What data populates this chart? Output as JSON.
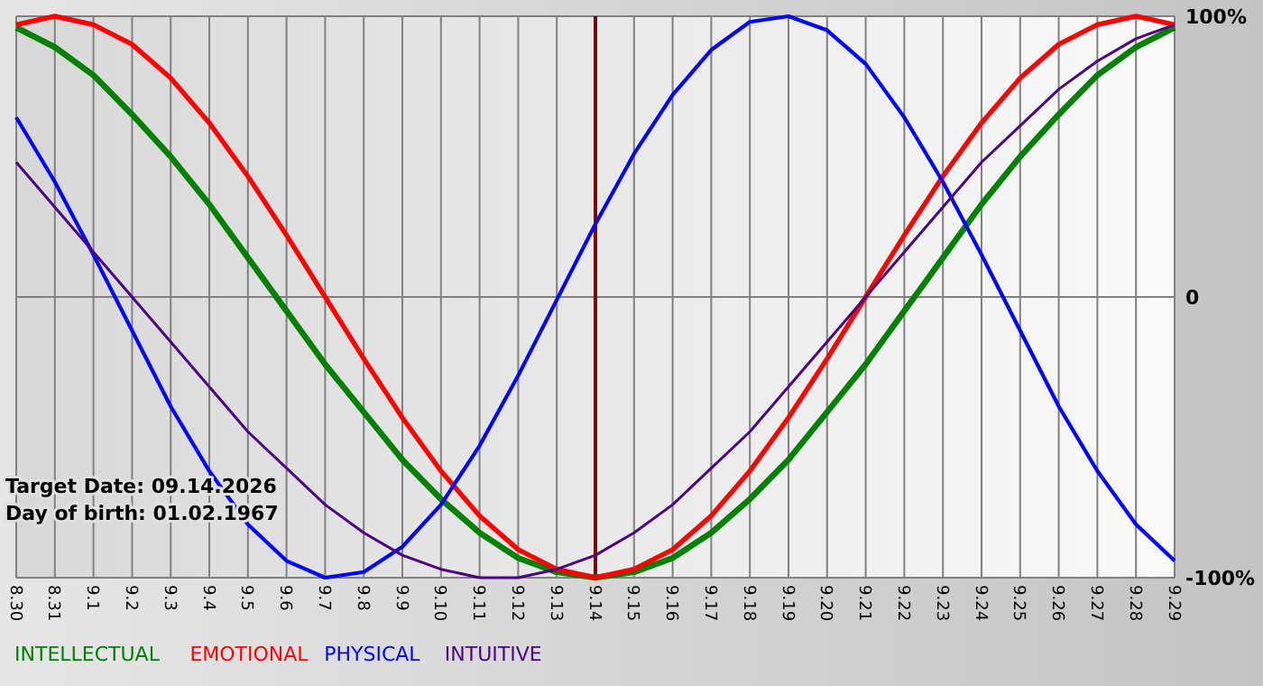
{
  "chart_data": {
    "type": "line",
    "categories": [
      "8.30",
      "8.31",
      "9.1",
      "9.2",
      "9.3",
      "9.4",
      "9.5",
      "9.6",
      "9.7",
      "9.8",
      "9.9",
      "9.10",
      "9.11",
      "9.12",
      "9.13",
      "9.14",
      "9.15",
      "9.16",
      "9.17",
      "9.18",
      "9.19",
      "9.20",
      "9.21",
      "9.22",
      "9.23",
      "9.24",
      "9.25",
      "9.26",
      "9.27",
      "9.28",
      "9.29"
    ],
    "series": [
      {
        "name": "INTELLECTUAL",
        "color": "#008000",
        "values": [
          96,
          89,
          79,
          65,
          50,
          33,
          14,
          -5,
          -24,
          -41,
          -58,
          -72,
          -84,
          -93,
          -98,
          -100,
          -98,
          -93,
          -84,
          -72,
          -58,
          -41,
          -24,
          -5,
          14,
          33,
          50,
          65,
          79,
          89,
          96
        ]
      },
      {
        "name": "EMOTIONAL",
        "color": "#ff0000",
        "values": [
          97,
          100,
          97,
          90,
          78,
          62,
          43,
          22,
          0,
          -22,
          -43,
          -62,
          -78,
          -90,
          -97,
          -100,
          -97,
          -90,
          -78,
          -62,
          -43,
          -22,
          0,
          22,
          43,
          62,
          78,
          90,
          97,
          100,
          97
        ]
      },
      {
        "name": "PHYSICAL",
        "color": "#0000ff",
        "values": [
          64,
          41,
          15,
          -12,
          -39,
          -62,
          -81,
          -94,
          -100,
          -98,
          -89,
          -74,
          -53,
          -28,
          -1,
          26,
          51,
          72,
          88,
          98,
          100,
          95,
          83,
          64,
          41,
          15,
          -12,
          -39,
          -62,
          -81,
          -94
        ]
      },
      {
        "name": "INTUITIVE",
        "color": "#4b0082",
        "values": [
          48,
          32,
          16,
          0,
          -16,
          -32,
          -48,
          -61,
          -74,
          -84,
          -92,
          -97,
          -100,
          -100,
          -97,
          -92,
          -84,
          -74,
          -61,
          -48,
          -32,
          -16,
          0,
          16,
          32,
          48,
          61,
          74,
          84,
          92,
          97
        ]
      }
    ],
    "ylim": [
      -100,
      100
    ],
    "yticks": [
      {
        "value": 100,
        "label": "100%"
      },
      0,
      {
        "value": -100,
        "label": "-100%"
      }
    ],
    "grid": true,
    "legend": "bottom",
    "marker": "none",
    "line_style": "solid",
    "ref_lines": [
      {
        "axis": "x",
        "value": "9.14",
        "color": "#800000"
      }
    ],
    "annotations": [
      "Target Date: 09.14.2026",
      "Day of birth: 01.02.1967"
    ]
  }
}
